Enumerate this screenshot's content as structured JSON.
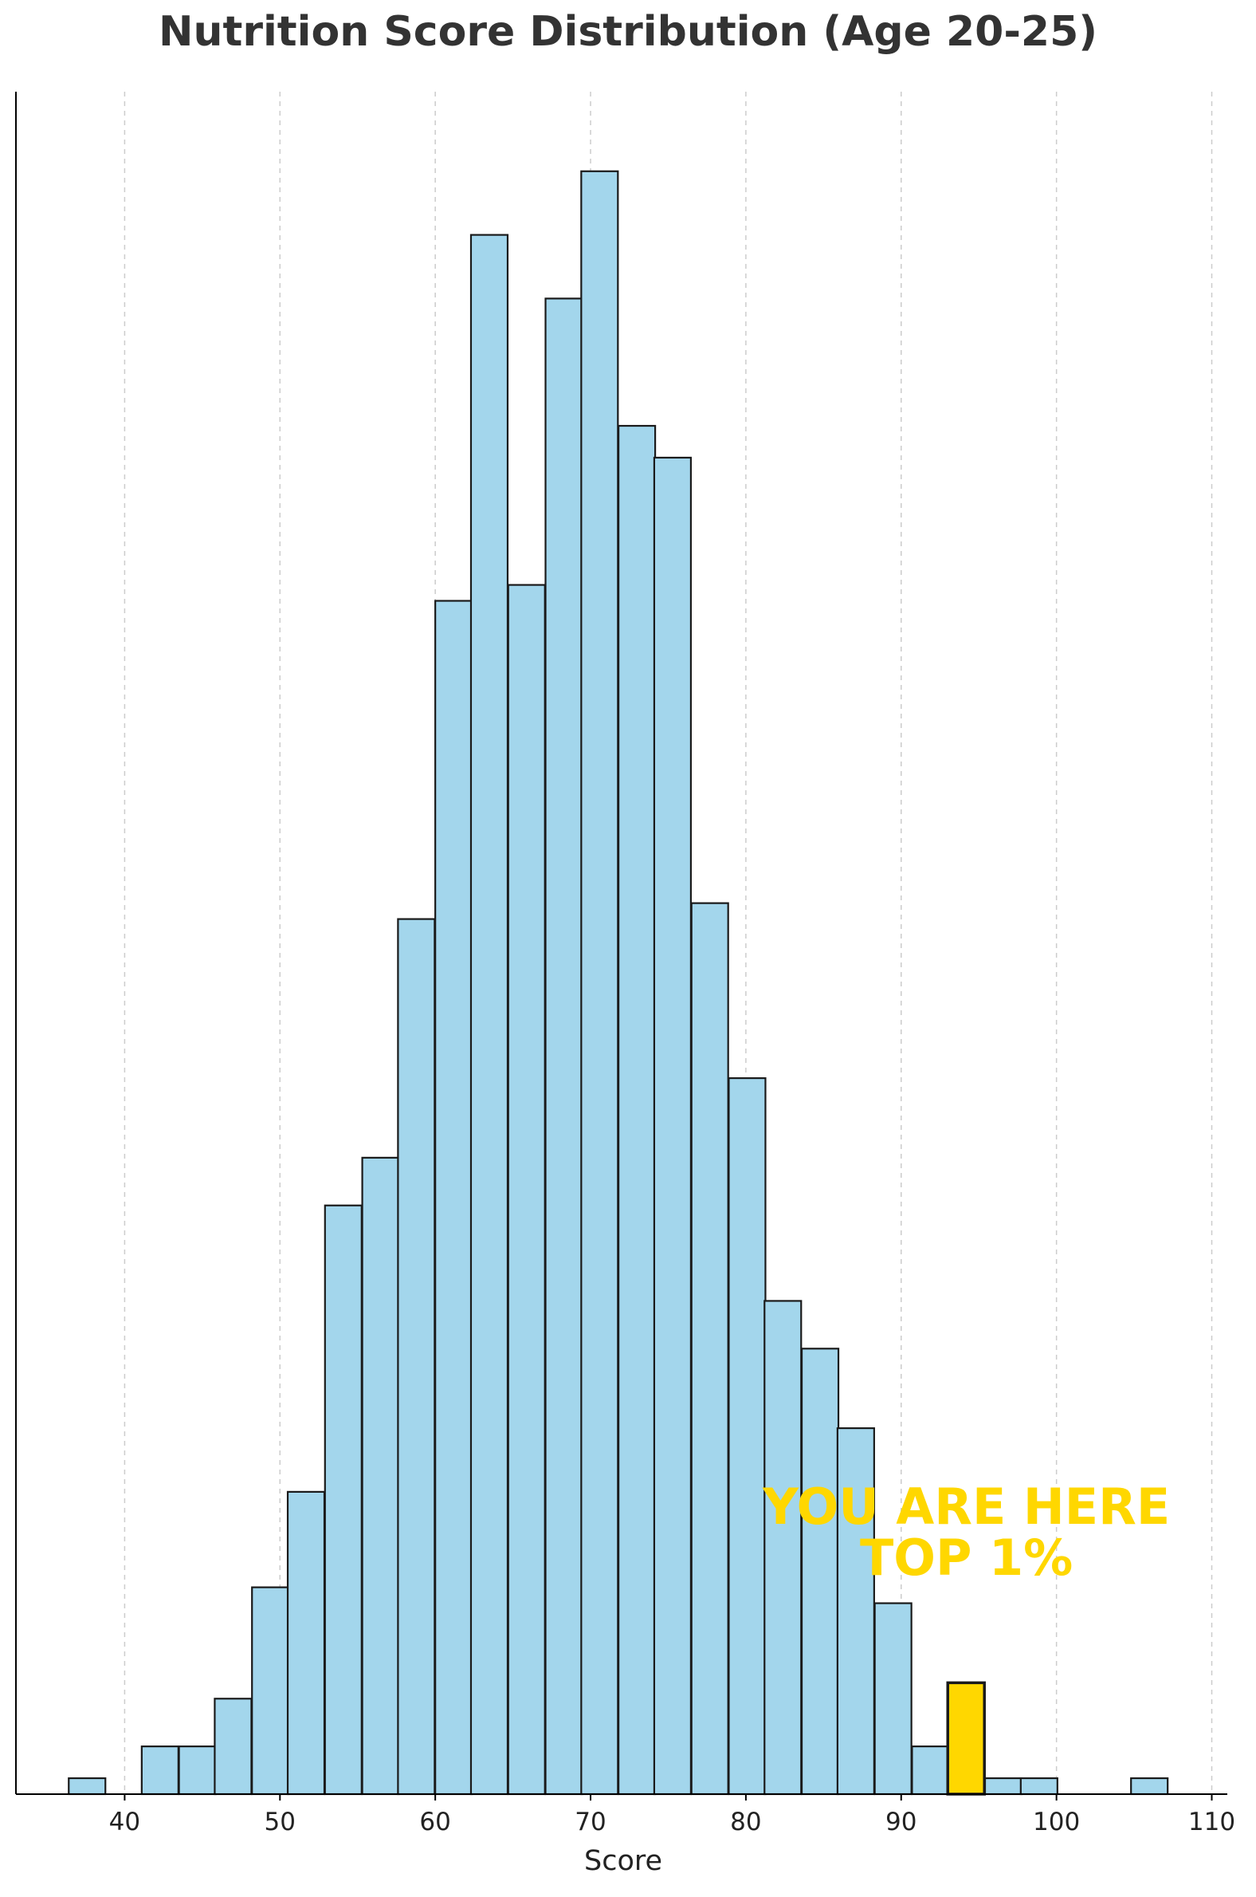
{
  "chart_data": {
    "type": "bar",
    "title": "Nutrition Score Distribution (Age 20-25)",
    "xlabel": "Score",
    "ylabel": "",
    "xlim": [
      33,
      111
    ],
    "ylim": [
      0,
      107
    ],
    "x_ticks": [
      40,
      50,
      60,
      70,
      80,
      90,
      100,
      110
    ],
    "grid": "vertical dashed",
    "bin_width": 2.36,
    "bins": [
      {
        "start": 36.4,
        "count": 1
      },
      {
        "start": 41.1,
        "count": 3
      },
      {
        "start": 43.5,
        "count": 3
      },
      {
        "start": 45.8,
        "count": 6
      },
      {
        "start": 48.2,
        "count": 13
      },
      {
        "start": 50.5,
        "count": 19
      },
      {
        "start": 52.9,
        "count": 37
      },
      {
        "start": 55.3,
        "count": 40
      },
      {
        "start": 57.6,
        "count": 55
      },
      {
        "start": 60.0,
        "count": 75
      },
      {
        "start": 62.3,
        "count": 98
      },
      {
        "start": 64.7,
        "count": 76
      },
      {
        "start": 67.1,
        "count": 94
      },
      {
        "start": 69.4,
        "count": 102
      },
      {
        "start": 71.8,
        "count": 86
      },
      {
        "start": 74.1,
        "count": 84
      },
      {
        "start": 76.5,
        "count": 56
      },
      {
        "start": 78.9,
        "count": 45
      },
      {
        "start": 81.2,
        "count": 31
      },
      {
        "start": 83.6,
        "count": 28
      },
      {
        "start": 85.9,
        "count": 23
      },
      {
        "start": 88.3,
        "count": 12
      },
      {
        "start": 90.7,
        "count": 3
      },
      {
        "start": 93.0,
        "count": 7,
        "highlight": true
      },
      {
        "start": 95.4,
        "count": 1
      },
      {
        "start": 97.7,
        "count": 1
      },
      {
        "start": 104.8,
        "count": 1
      }
    ],
    "bar_color": "#a3d6ec",
    "highlight_color": "#ffd700",
    "edge_color": "#1a1a1a",
    "annotation": {
      "lines": [
        "YOU ARE HERE",
        "TOP 1%"
      ],
      "x": 94.2,
      "y": 17,
      "color": "#ffd700"
    }
  }
}
